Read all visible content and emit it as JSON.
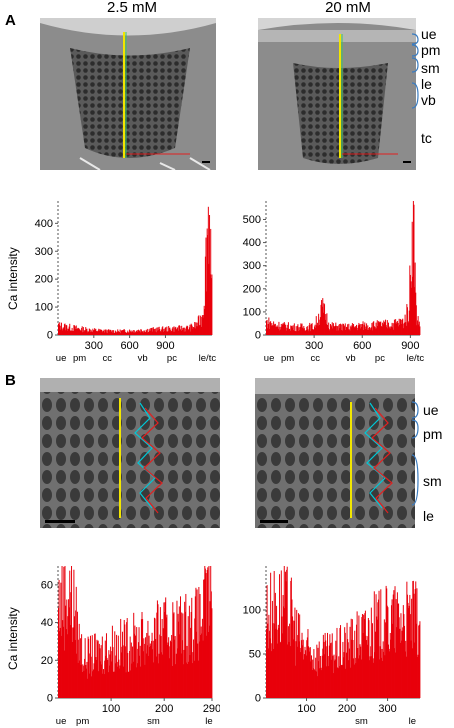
{
  "panels": {
    "A": {
      "letter": "A",
      "conditions": [
        "2.5 mM",
        "20 mM"
      ],
      "tissue_labels": [
        "ue",
        "pm",
        "sm",
        "le",
        "vb",
        "tc"
      ]
    },
    "B": {
      "letter": "B",
      "tissue_labels": [
        "ue",
        "pm",
        "sm",
        "le"
      ]
    }
  },
  "chart_data": [
    {
      "type": "bar",
      "panel": "A",
      "condition": "2.5 mM",
      "ylabel": "Ca intensity",
      "xlim": [
        0,
        1290
      ],
      "ylim": [
        0,
        480
      ],
      "x_ticks": [
        300,
        600,
        900
      ],
      "y_ticks": [
        0,
        100,
        200,
        300,
        400
      ],
      "tissue_ticks": [
        "ue",
        "pm",
        "cc",
        "vb",
        "pc",
        "le/tc"
      ],
      "profile": [
        {
          "x": 0,
          "y": 35
        },
        {
          "x": 100,
          "y": 28
        },
        {
          "x": 200,
          "y": 22
        },
        {
          "x": 300,
          "y": 18
        },
        {
          "x": 400,
          "y": 15
        },
        {
          "x": 500,
          "y": 14
        },
        {
          "x": 600,
          "y": 16
        },
        {
          "x": 700,
          "y": 18
        },
        {
          "x": 800,
          "y": 20
        },
        {
          "x": 900,
          "y": 22
        },
        {
          "x": 1000,
          "y": 24
        },
        {
          "x": 1100,
          "y": 26
        },
        {
          "x": 1150,
          "y": 35
        },
        {
          "x": 1200,
          "y": 60
        },
        {
          "x": 1220,
          "y": 120
        },
        {
          "x": 1240,
          "y": 300
        },
        {
          "x": 1255,
          "y": 440
        },
        {
          "x": 1265,
          "y": 470
        },
        {
          "x": 1275,
          "y": 380
        },
        {
          "x": 1285,
          "y": 150
        }
      ]
    },
    {
      "type": "bar",
      "panel": "A",
      "condition": "20 mM",
      "ylabel": "",
      "xlim": [
        0,
        960
      ],
      "ylim": [
        0,
        580
      ],
      "x_ticks": [
        300,
        600,
        900
      ],
      "y_ticks": [
        0,
        100,
        200,
        300,
        400,
        500
      ],
      "tissue_ticks": [
        "ue",
        "pm",
        "cc",
        "vb",
        "pc",
        "le/tc"
      ],
      "profile": [
        {
          "x": 0,
          "y": 60
        },
        {
          "x": 60,
          "y": 45
        },
        {
          "x": 120,
          "y": 40
        },
        {
          "x": 200,
          "y": 35
        },
        {
          "x": 300,
          "y": 38
        },
        {
          "x": 350,
          "y": 120
        },
        {
          "x": 400,
          "y": 40
        },
        {
          "x": 500,
          "y": 35
        },
        {
          "x": 600,
          "y": 42
        },
        {
          "x": 700,
          "y": 45
        },
        {
          "x": 800,
          "y": 50
        },
        {
          "x": 860,
          "y": 60
        },
        {
          "x": 890,
          "y": 120
        },
        {
          "x": 905,
          "y": 400
        },
        {
          "x": 915,
          "y": 570
        },
        {
          "x": 925,
          "y": 380
        },
        {
          "x": 935,
          "y": 100
        },
        {
          "x": 950,
          "y": 60
        }
      ]
    },
    {
      "type": "bar",
      "panel": "B",
      "condition": "2.5 mM",
      "ylabel": "Ca intensity",
      "xlim": [
        0,
        290
      ],
      "ylim": [
        0,
        70
      ],
      "x_ticks": [
        100,
        200,
        290
      ],
      "y_ticks": [
        0,
        20,
        40,
        60
      ],
      "tissue_ticks": [
        "ue",
        "pm",
        "sm",
        "le"
      ],
      "profile": [
        {
          "x": 0,
          "y": 52
        },
        {
          "x": 10,
          "y": 55
        },
        {
          "x": 20,
          "y": 58
        },
        {
          "x": 30,
          "y": 50
        },
        {
          "x": 40,
          "y": 30
        },
        {
          "x": 50,
          "y": 22
        },
        {
          "x": 70,
          "y": 24
        },
        {
          "x": 100,
          "y": 28
        },
        {
          "x": 130,
          "y": 30
        },
        {
          "x": 160,
          "y": 33
        },
        {
          "x": 190,
          "y": 36
        },
        {
          "x": 220,
          "y": 38
        },
        {
          "x": 250,
          "y": 40
        },
        {
          "x": 270,
          "y": 42
        },
        {
          "x": 280,
          "y": 55
        },
        {
          "x": 288,
          "y": 60
        }
      ]
    },
    {
      "type": "bar",
      "panel": "B",
      "condition": "20 mM",
      "ylabel": "",
      "xlim": [
        0,
        380
      ],
      "ylim": [
        0,
        150
      ],
      "x_ticks": [
        100,
        200,
        300
      ],
      "y_ticks": [
        0,
        50,
        100
      ],
      "tissue_ticks": [
        "sm",
        "le"
      ],
      "profile": [
        {
          "x": 0,
          "y": 100
        },
        {
          "x": 20,
          "y": 105
        },
        {
          "x": 40,
          "y": 110
        },
        {
          "x": 60,
          "y": 100
        },
        {
          "x": 80,
          "y": 70
        },
        {
          "x": 100,
          "y": 55
        },
        {
          "x": 130,
          "y": 50
        },
        {
          "x": 160,
          "y": 52
        },
        {
          "x": 200,
          "y": 62
        },
        {
          "x": 240,
          "y": 75
        },
        {
          "x": 270,
          "y": 85
        },
        {
          "x": 300,
          "y": 90
        },
        {
          "x": 330,
          "y": 92
        },
        {
          "x": 360,
          "y": 95
        },
        {
          "x": 380,
          "y": 90
        }
      ]
    }
  ]
}
